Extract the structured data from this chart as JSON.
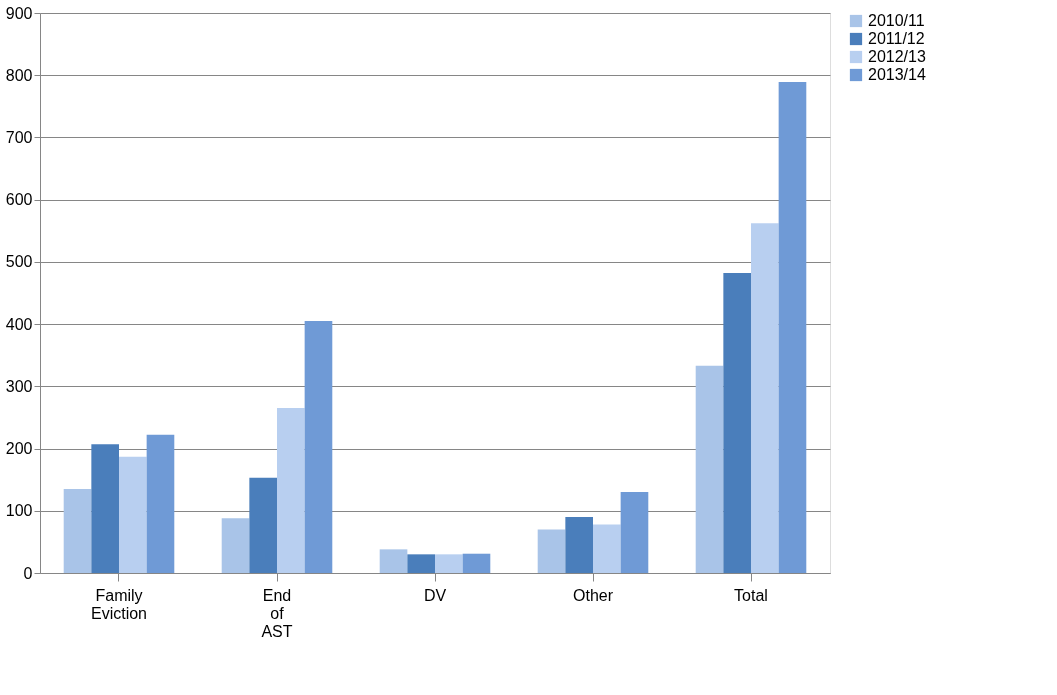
{
  "chart_data": {
    "type": "bar",
    "categories": [
      "Family Eviction",
      "End of AST",
      "DV",
      "Other",
      "Total"
    ],
    "series": [
      {
        "name": "2010/11",
        "color": "#a9c4e8",
        "values": [
          135,
          88,
          38,
          70,
          333
        ]
      },
      {
        "name": "2011/12",
        "color": "#4a7ebb",
        "values": [
          207,
          153,
          30,
          90,
          482
        ]
      },
      {
        "name": "2012/13",
        "color": "#b8cff0",
        "values": [
          187,
          265,
          30,
          78,
          562
        ]
      },
      {
        "name": "2013/14",
        "color": "#6f9ad6",
        "values": [
          222,
          405,
          31,
          130,
          789
        ]
      }
    ],
    "ylim": [
      0,
      900
    ],
    "yticks": [
      0,
      100,
      200,
      300,
      400,
      500,
      600,
      700,
      800,
      900
    ],
    "grid": "y",
    "legend": "right"
  }
}
